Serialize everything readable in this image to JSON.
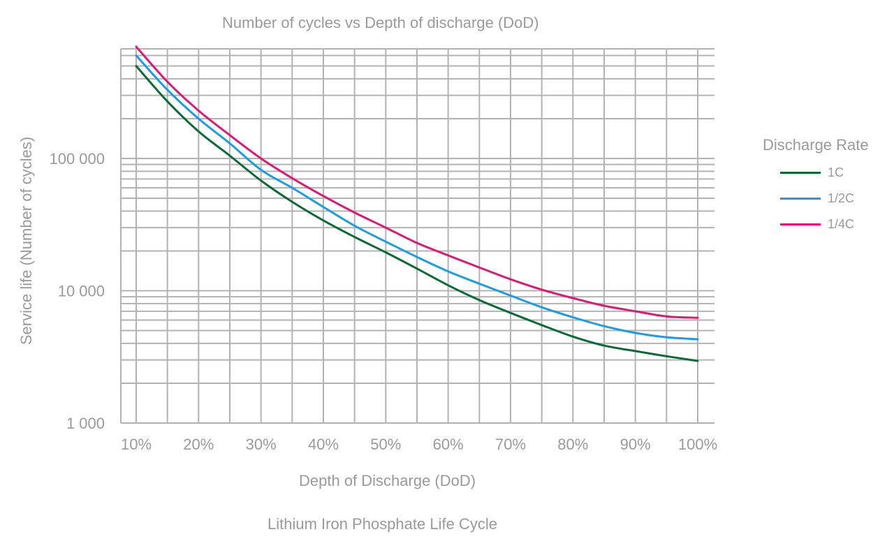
{
  "chart_data": {
    "type": "line",
    "title": "Number of cycles vs Depth of discharge (DoD)",
    "xlabel": "Depth of Discharge (DoD)",
    "ylabel": "Service life (Number of cycles)",
    "caption": "Lithium Iron Phosphate Life Cycle",
    "x": [
      10,
      15,
      20,
      25,
      30,
      35,
      40,
      45,
      50,
      55,
      60,
      65,
      70,
      75,
      80,
      85,
      90,
      95,
      100
    ],
    "x_ticks": [
      10,
      20,
      30,
      40,
      50,
      60,
      70,
      80,
      90,
      100
    ],
    "x_tick_labels": [
      "10%",
      "20%",
      "30%",
      "40%",
      "50%",
      "60%",
      "70%",
      "80%",
      "90%",
      "100%"
    ],
    "xlim": [
      9,
      101
    ],
    "yscale": "log",
    "ylim": [
      1000,
      700000
    ],
    "y_tick_values": [
      1000,
      10000,
      100000
    ],
    "y_tick_labels": [
      "1 000",
      "10 000",
      "100 000"
    ],
    "grid": true,
    "legend_title": "Discharge Rate",
    "legend_position": "right",
    "series": [
      {
        "name": "1C",
        "color": "#0b6b35",
        "values": [
          500000,
          270000,
          160000,
          105000,
          68000,
          47000,
          34000,
          25500,
          19500,
          14700,
          11000,
          8500,
          6800,
          5500,
          4500,
          3850,
          3500,
          3200,
          2950
        ]
      },
      {
        "name": "1/2C",
        "color": "#1a9de2",
        "values": [
          600000,
          330000,
          200000,
          130000,
          82000,
          60000,
          43000,
          31000,
          23500,
          18000,
          14000,
          11300,
          9200,
          7500,
          6300,
          5400,
          4800,
          4450,
          4300
        ]
      },
      {
        "name": "1/4C",
        "color": "#dc1a76",
        "values": [
          700000,
          380000,
          230000,
          150000,
          100000,
          71000,
          52000,
          39000,
          30000,
          23000,
          18500,
          15000,
          12200,
          10200,
          8800,
          7700,
          7000,
          6400,
          6250
        ]
      }
    ]
  }
}
